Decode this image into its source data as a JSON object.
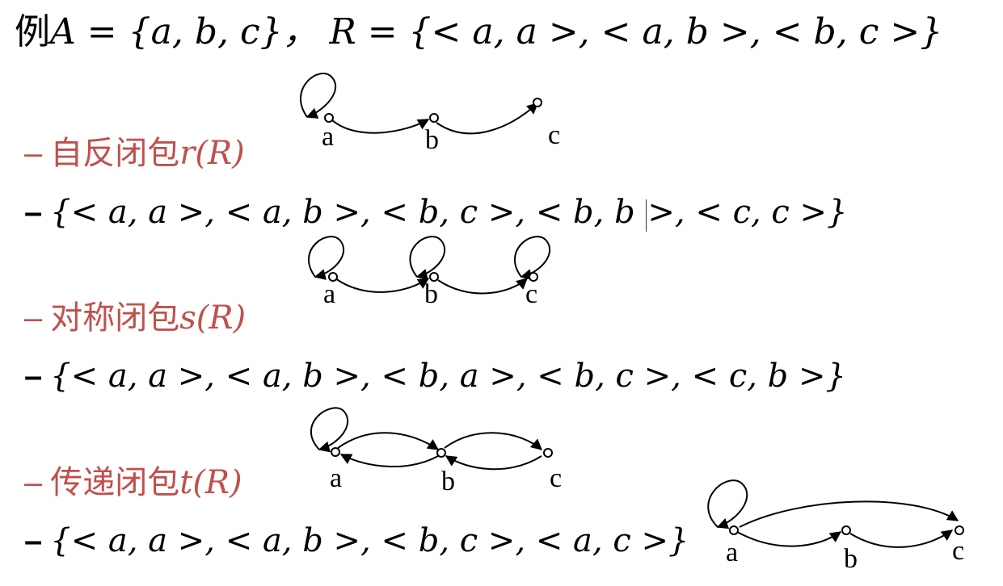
{
  "title": {
    "prefix": "例",
    "math": "A = {a, b, c}，  R = {< a, a >, < a, b >, < b, c >}"
  },
  "sections": [
    {
      "heading_dash": "–",
      "heading_cjk": "自反闭包",
      "heading_math": "r(R)",
      "set_dash": "–",
      "set_part1": "{< a, a >, < a, b >, < b, c >, < b, b ",
      "set_part2": ">, < c, c >}"
    },
    {
      "heading_dash": "–",
      "heading_cjk": "对称闭包",
      "heading_math": "s(R)",
      "set_dash": "–",
      "set_text": "{< a, a >, < a, b >, < b, a >, < b, c >, < c, b >}"
    },
    {
      "heading_dash": "–",
      "heading_cjk": "传递闭包",
      "heading_math": "t(R)",
      "set_dash": "–",
      "set_text": "{< a, a >, < a, b >, < b, c >, < a, c >}"
    }
  ],
  "node_labels": {
    "a": "a",
    "b": "b",
    "c": "c"
  }
}
